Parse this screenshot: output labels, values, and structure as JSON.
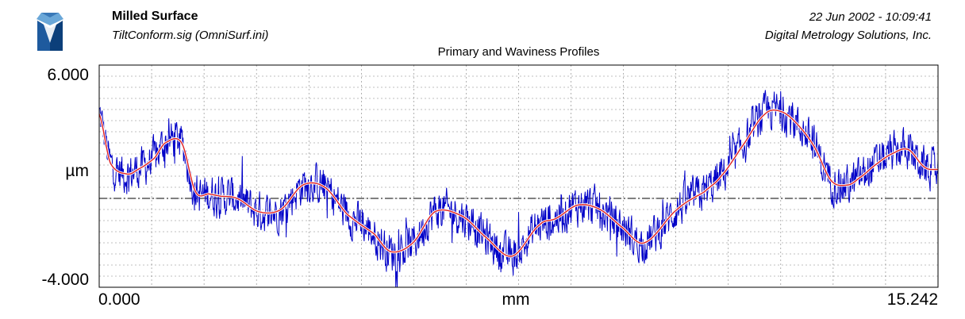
{
  "header": {
    "title": "Milled Surface",
    "subtitle": "TiltConform.sig  (OmniSurf.ini)",
    "datetime": "22 Jun 2002 - 10:09:41",
    "company": "Digital Metrology Solutions, Inc."
  },
  "colors": {
    "primary_profile": "#0000c8",
    "waviness_profile": "#e02020",
    "grid": "#808080",
    "logo_light": "#6aa7d8",
    "logo_dark": "#0c3f7a"
  },
  "chart_data": {
    "type": "line",
    "title": "Primary and Waviness Profiles",
    "xlabel": "mm",
    "ylabel": "µm",
    "xlim": [
      0.0,
      15.242
    ],
    "ylim": [
      -4.0,
      6.0
    ],
    "x_tick_labels": [
      "0.000",
      "15.242"
    ],
    "y_tick_labels": [
      "6.000",
      "-4.000"
    ],
    "grid": true,
    "reference_line_y": 0.0,
    "series": [
      {
        "name": "Waviness",
        "x": [
          0.0,
          0.2,
          0.5,
          0.7,
          1.0,
          1.2,
          1.5,
          1.75,
          2.0,
          2.2,
          2.5,
          2.9,
          3.3,
          3.7,
          4.1,
          4.5,
          5.0,
          5.3,
          5.7,
          6.1,
          6.6,
          7.0,
          7.5,
          8.0,
          8.3,
          8.7,
          9.1,
          9.5,
          9.9,
          10.5,
          11.0,
          11.3,
          11.7,
          12.1,
          12.4,
          12.7,
          13.0,
          13.3,
          13.6,
          13.8,
          14.1,
          14.4,
          14.7,
          15.0,
          15.242
        ],
        "y": [
          3.8,
          1.6,
          1.1,
          1.3,
          1.8,
          2.5,
          2.5,
          0.3,
          0.2,
          0.1,
          0.0,
          -0.6,
          -0.5,
          0.6,
          0.5,
          -0.7,
          -1.6,
          -2.4,
          -2.0,
          -0.6,
          -0.8,
          -1.7,
          -2.6,
          -1.2,
          -0.9,
          -0.3,
          -0.5,
          -1.3,
          -2.0,
          -0.5,
          0.3,
          1.0,
          2.4,
          3.8,
          3.9,
          3.3,
          2.3,
          0.8,
          0.6,
          0.9,
          1.5,
          2.0,
          2.2,
          1.4,
          1.3
        ]
      }
    ]
  }
}
